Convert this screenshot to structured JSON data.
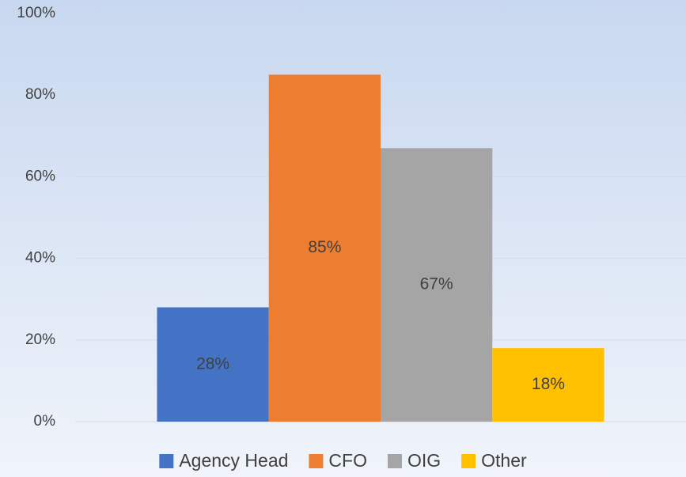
{
  "chart_data": {
    "type": "bar",
    "categories": [
      null
    ],
    "series": [
      {
        "name": "Agency Head",
        "color": "#4472c4",
        "values": [
          28
        ],
        "value_labels": [
          "28%"
        ]
      },
      {
        "name": "CFO",
        "color": "#ed7d31",
        "values": [
          85
        ],
        "value_labels": [
          "85%"
        ]
      },
      {
        "name": "OIG",
        "color": "#a5a5a5",
        "values": [
          67
        ],
        "value_labels": [
          "67%"
        ]
      },
      {
        "name": "Other",
        "color": "#ffc000",
        "values": [
          18
        ],
        "value_labels": [
          "18%"
        ]
      }
    ],
    "ylim": [
      0,
      100
    ],
    "yticks": [
      {
        "value": 0,
        "label": "0%"
      },
      {
        "value": 20,
        "label": "20%"
      },
      {
        "value": 40,
        "label": "40%"
      },
      {
        "value": 60,
        "label": "60%"
      },
      {
        "value": 80,
        "label": "80%"
      },
      {
        "value": 100,
        "label": "100%"
      }
    ],
    "grid": true,
    "legend": "bottom"
  }
}
